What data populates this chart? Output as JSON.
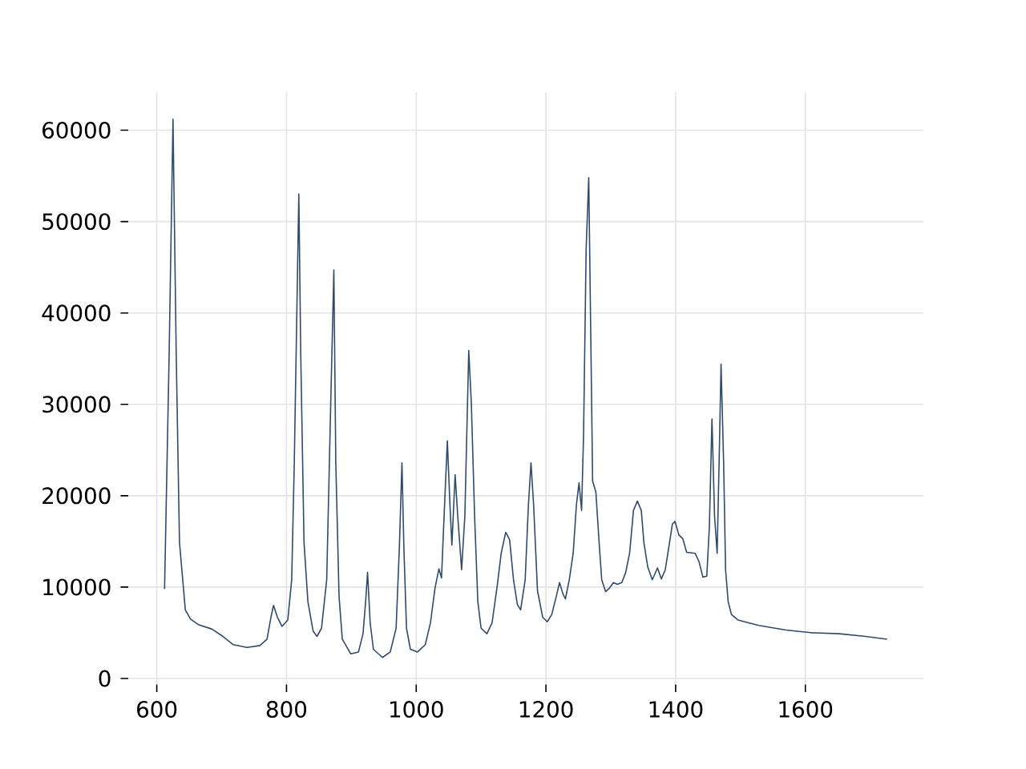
{
  "chart_data": {
    "type": "line",
    "color": "#2e4b6e",
    "x": [
      612,
      619,
      625,
      630,
      635,
      644,
      652,
      664,
      685,
      702,
      718,
      739,
      759,
      770,
      776,
      780,
      786,
      793,
      802,
      808,
      812,
      819,
      822,
      827,
      833,
      841,
      847,
      854,
      862,
      868,
      873,
      876,
      881,
      886,
      899,
      911,
      918,
      922,
      925,
      929,
      934,
      948,
      960,
      969,
      974,
      978,
      981,
      985,
      991,
      1002,
      1014,
      1022,
      1029,
      1035,
      1039,
      1043,
      1048,
      1052,
      1055,
      1060,
      1064,
      1070,
      1075,
      1081,
      1085,
      1090,
      1095,
      1100,
      1109,
      1117,
      1125,
      1131,
      1138,
      1144,
      1150,
      1156,
      1161,
      1168,
      1173,
      1177,
      1181,
      1187,
      1195,
      1202,
      1209,
      1216,
      1221,
      1226,
      1230,
      1236,
      1242,
      1247,
      1251,
      1255,
      1258,
      1262,
      1266,
      1269,
      1272,
      1277,
      1282,
      1286,
      1292,
      1298,
      1304,
      1310,
      1317,
      1323,
      1329,
      1335,
      1341,
      1347,
      1351,
      1357,
      1364,
      1372,
      1378,
      1384,
      1390,
      1395,
      1399,
      1405,
      1411,
      1417,
      1430,
      1436,
      1442,
      1448,
      1452,
      1456,
      1460,
      1464,
      1467,
      1470,
      1474,
      1477,
      1481,
      1486,
      1496,
      1528,
      1570,
      1611,
      1652,
      1693,
      1726
    ],
    "values": [
      9800,
      35300,
      61200,
      35300,
      14900,
      7500,
      6500,
      5900,
      5400,
      4600,
      3700,
      3400,
      3600,
      4300,
      6700,
      8000,
      6700,
      5700,
      6400,
      10800,
      23600,
      53000,
      35300,
      14900,
      8400,
      5200,
      4600,
      5500,
      10800,
      29500,
      44700,
      23600,
      9000,
      4300,
      2700,
      2900,
      4900,
      8400,
      11600,
      6100,
      3200,
      2300,
      2900,
      5500,
      14300,
      23600,
      14300,
      5500,
      3200,
      2900,
      3700,
      6100,
      9900,
      12000,
      11000,
      17800,
      26000,
      19000,
      14600,
      22300,
      17800,
      11900,
      17800,
      35900,
      30100,
      17800,
      8400,
      5500,
      4900,
      6100,
      10200,
      13700,
      16000,
      15200,
      10800,
      8100,
      7500,
      10800,
      19000,
      23600,
      19000,
      9600,
      6700,
      6200,
      7000,
      9000,
      10500,
      9300,
      8700,
      10800,
      13700,
      19000,
      21400,
      18400,
      26600,
      47000,
      54800,
      38300,
      21600,
      20400,
      14900,
      10800,
      9500,
      9900,
      10500,
      10300,
      10500,
      11600,
      13700,
      18400,
      19400,
      18400,
      14900,
      12200,
      10800,
      12100,
      10900,
      11900,
      14600,
      16900,
      17200,
      15700,
      15300,
      13800,
      13700,
      12800,
      11100,
      11200,
      16600,
      28400,
      17800,
      13700,
      23600,
      34400,
      23600,
      11900,
      8400,
      7000,
      6400,
      5800,
      5300,
      5000,
      4900,
      4600,
      4300
    ],
    "xlim": [
      556,
      1782
    ],
    "ylim": [
      -650,
      64150
    ],
    "xticks": [
      600,
      800,
      1000,
      1200,
      1400,
      1600
    ],
    "yticks": [
      0,
      10000,
      20000,
      30000,
      40000,
      50000,
      60000
    ],
    "grid": true
  }
}
